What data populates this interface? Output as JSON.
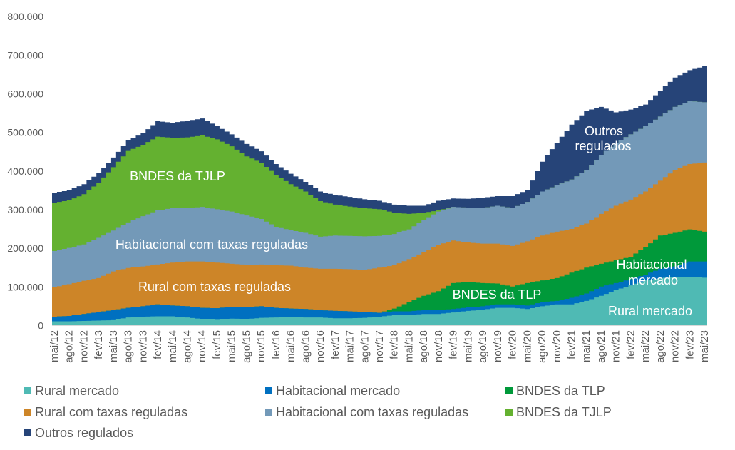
{
  "chart_data": {
    "type": "area",
    "stacked": true,
    "title": "",
    "xlabel": "",
    "ylabel": "",
    "ylim": [
      0,
      800000
    ],
    "grid": false,
    "legend": "bottom",
    "yticks": [
      {
        "value": 0,
        "label": "0"
      },
      {
        "value": 100000,
        "label": "100.000"
      },
      {
        "value": 200000,
        "label": "200.000"
      },
      {
        "value": 300000,
        "label": "300.000"
      },
      {
        "value": 400000,
        "label": "400.000"
      },
      {
        "value": 500000,
        "label": "500.000"
      },
      {
        "value": 600000,
        "label": "600.000"
      },
      {
        "value": 700000,
        "label": "700.000"
      },
      {
        "value": 800000,
        "label": "800.000"
      }
    ],
    "x": [
      "mai/12",
      "ago/12",
      "nov/12",
      "fev/13",
      "mai/13",
      "ago/13",
      "nov/13",
      "fev/14",
      "mai/14",
      "ago/14",
      "nov/14",
      "fev/15",
      "mai/15",
      "ago/15",
      "nov/15",
      "fev/16",
      "mai/16",
      "ago/16",
      "nov/16",
      "fev/17",
      "mai/17",
      "ago/17",
      "nov/17",
      "fev/18",
      "mai/18",
      "ago/18",
      "nov/18",
      "fev/19",
      "mai/19",
      "ago/19",
      "nov/19",
      "fev/20",
      "mai/20",
      "ago/20",
      "nov/20",
      "fev/21",
      "mai/21",
      "ago/21",
      "nov/21",
      "fev/22",
      "mai/22",
      "ago/22",
      "nov/22",
      "fev/23",
      "mai/23"
    ],
    "series": [
      {
        "name": "Rural mercado",
        "color": "#4FBAB4",
        "values": [
          11000,
          11000,
          12000,
          13000,
          14000,
          21000,
          23000,
          24000,
          24000,
          21000,
          17000,
          15000,
          18000,
          17000,
          20000,
          21000,
          23000,
          21000,
          21000,
          19000,
          19000,
          20000,
          23000,
          27000,
          27000,
          30000,
          30000,
          34000,
          38000,
          41000,
          46000,
          46000,
          43000,
          50000,
          55000,
          55000,
          64000,
          77000,
          92000,
          104000,
          117000,
          123000,
          126000,
          126000,
          124000
        ]
      },
      {
        "name": "Habitacional mercado",
        "color": "#0070C0",
        "values": [
          12000,
          14000,
          18000,
          22000,
          26000,
          25000,
          27000,
          31000,
          28000,
          29000,
          29000,
          30000,
          31000,
          31000,
          30000,
          25000,
          21000,
          22000,
          19000,
          19000,
          18000,
          15000,
          10000,
          10000,
          10000,
          10000,
          10000,
          9000,
          9000,
          9000,
          9000,
          9000,
          9000,
          11000,
          9000,
          17000,
          19000,
          24000,
          18000,
          16000,
          15000,
          24000,
          27000,
          40000,
          42000
        ]
      },
      {
        "name": "BNDES da TLP",
        "color": "#00993A",
        "values": [
          0,
          0,
          0,
          0,
          0,
          0,
          0,
          0,
          0,
          0,
          0,
          0,
          0,
          0,
          0,
          0,
          0,
          0,
          0,
          0,
          0,
          0,
          0,
          7000,
          24000,
          37000,
          49000,
          67000,
          66000,
          60000,
          54000,
          46000,
          58000,
          56000,
          59000,
          65000,
          67000,
          59000,
          59000,
          58000,
          71000,
          86000,
          87000,
          83000,
          77000
        ]
      },
      {
        "name": "Rural com taxas reguladas",
        "color": "#CD8528",
        "values": [
          76000,
          82000,
          86000,
          88000,
          100000,
          103000,
          103000,
          103000,
          111000,
          116000,
          120000,
          118000,
          111000,
          109000,
          108000,
          110000,
          111000,
          107000,
          107000,
          109000,
          109000,
          109000,
          117000,
          112000,
          111000,
          113000,
          120000,
          110000,
          102000,
          102000,
          103000,
          105000,
          108000,
          116000,
          120000,
          113000,
          114000,
          129000,
          141000,
          148000,
          144000,
          142000,
          163000,
          169000,
          179000
        ]
      },
      {
        "name": "Habitacional com taxas reguladas",
        "color": "#7399B8",
        "values": [
          94000,
          94000,
          94000,
          104000,
          106000,
          118000,
          130000,
          140000,
          141000,
          138000,
          141000,
          138000,
          135000,
          128000,
          118000,
          99000,
          92000,
          90000,
          83000,
          86000,
          86000,
          87000,
          82000,
          81000,
          77000,
          83000,
          86000,
          87000,
          90000,
          92000,
          98000,
          98000,
          102000,
          114000,
          120000,
          128000,
          139000,
          153000,
          163000,
          169000,
          169000,
          166000,
          163000,
          163000,
          156000
        ]
      },
      {
        "name": "BNDES da TJLP",
        "color": "#64B130",
        "values": [
          125000,
          123000,
          130000,
          143000,
          164000,
          185000,
          185000,
          191000,
          182000,
          183000,
          185000,
          181000,
          169000,
          153000,
          145000,
          135000,
          119000,
          107000,
          92000,
          80000,
          76000,
          73000,
          69000,
          55000,
          40000,
          19000,
          3000,
          0,
          0,
          0,
          0,
          0,
          0,
          0,
          0,
          0,
          0,
          0,
          0,
          0,
          0,
          0,
          0,
          0,
          0
        ]
      },
      {
        "name": "Outros regulados",
        "color": "#264478",
        "values": [
          26000,
          26000,
          26000,
          25000,
          25000,
          27000,
          30000,
          40000,
          39000,
          43000,
          44000,
          34000,
          31000,
          32000,
          30000,
          28000,
          27000,
          25000,
          25000,
          25000,
          25000,
          23000,
          22000,
          21000,
          21000,
          18000,
          25000,
          22000,
          23000,
          27000,
          25000,
          31000,
          31000,
          77000,
          110000,
          142000,
          153000,
          124000,
          79000,
          64000,
          56000,
          67000,
          76000,
          80000,
          93000
        ]
      }
    ],
    "annotations": [
      {
        "series": "BNDES da TJLP",
        "lines": [
          "BNDES da TJLP"
        ]
      },
      {
        "series": "Habitacional com taxas reguladas",
        "lines": [
          "Habitacional com taxas reguladas"
        ]
      },
      {
        "series": "Rural com taxas reguladas",
        "lines": [
          "Rural com taxas reguladas"
        ]
      },
      {
        "series": "BNDES da TLP",
        "lines": [
          "BNDES da TLP"
        ]
      },
      {
        "series": "Outros regulados",
        "lines": [
          "Outros",
          "regulados"
        ]
      },
      {
        "series": "Habitacional mercado",
        "lines": [
          "Habitacional",
          "mercado"
        ]
      },
      {
        "series": "Rural mercado",
        "lines": [
          "Rural mercado"
        ]
      }
    ]
  }
}
